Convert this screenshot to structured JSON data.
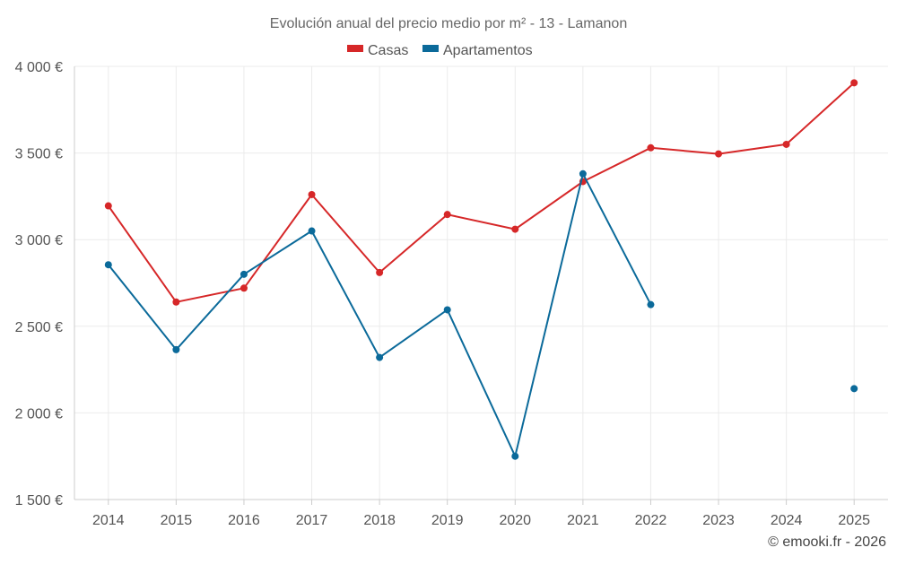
{
  "chart_data": {
    "type": "line",
    "title": "Evolución anual del precio medio por m² - 13 - Lamanon",
    "categories": [
      "2014",
      "2015",
      "2016",
      "2017",
      "2018",
      "2019",
      "2020",
      "2021",
      "2022",
      "2023",
      "2024",
      "2025"
    ],
    "yticks": [
      1500,
      2000,
      2500,
      3000,
      3500,
      4000
    ],
    "ytick_labels": [
      "1 500 €",
      "2 000 €",
      "2 500 €",
      "3 000 €",
      "3 500 €",
      "4 000 €"
    ],
    "ylim": [
      1500,
      4000
    ],
    "grid": true,
    "legend_position": "top-center",
    "series": [
      {
        "name": "Casas",
        "color": "#d62728",
        "values": [
          3195,
          2640,
          2720,
          3260,
          2810,
          3145,
          3060,
          3335,
          3530,
          3495,
          3550,
          3905
        ]
      },
      {
        "name": "Apartamentos",
        "color": "#0b6a9a",
        "values": [
          2855,
          2365,
          2800,
          3050,
          2320,
          2595,
          1750,
          3380,
          2625,
          null,
          null,
          2140
        ]
      }
    ]
  },
  "credit": "© emooki.fr - 2026"
}
